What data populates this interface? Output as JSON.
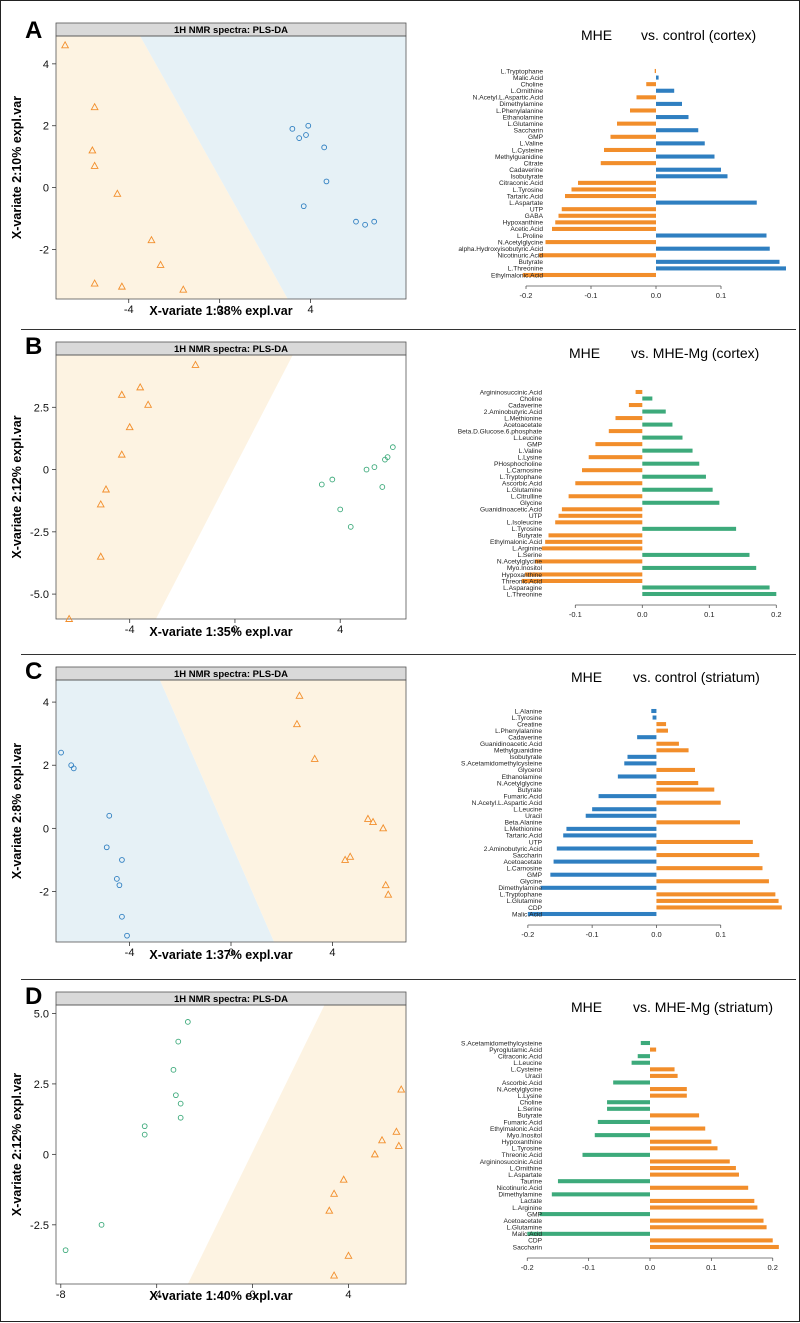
{
  "figure": {
    "palette": {
      "orange": "#f28e2b",
      "blue": "#2f7fc1",
      "green": "#3daa7b",
      "bg_orange": "#fdf3e2",
      "bg_blue": "#e6f1f6",
      "bg_green": "#eef6f3"
    },
    "panels": [
      {
        "label": "A",
        "score_plot": {
          "header": "1H NMR spectra: PLS-DA",
          "xlabel": "X-variate 1:38% expl.var",
          "ylabel": "X-variate 2:10% expl.var",
          "xticks": [
            "-4",
            "0",
            "4"
          ],
          "yticks": [
            "-2",
            "0",
            "2",
            "4"
          ]
        },
        "loading_plot": {
          "title_main": "MHE",
          "title_vs": "vs. control (cortex)",
          "xticks": [
            "-0.2",
            "-0.1",
            "0.0",
            "0.1"
          ]
        }
      },
      {
        "label": "B",
        "score_plot": {
          "header": "1H NMR spectra: PLS-DA",
          "xlabel": "X-variate 1:35% expl.var",
          "ylabel": "X-variate 2:12% expl.var",
          "xticks": [
            "-4",
            "0",
            "4"
          ],
          "yticks": [
            "-5.0",
            "-2.5",
            "0",
            "2.5"
          ]
        },
        "loading_plot": {
          "title_main": "MHE",
          "title_vs": "vs. MHE-Mg (cortex)",
          "xticks": [
            "-0.1",
            "0.0",
            "0.1",
            "0.2"
          ]
        }
      },
      {
        "label": "C",
        "score_plot": {
          "header": "1H NMR spectra: PLS-DA",
          "xlabel": "X-variate 1:37% expl.var",
          "ylabel": "X-variate 2:8% expl.var",
          "xticks": [
            "-4",
            "0",
            "4"
          ],
          "yticks": [
            "-2",
            "0",
            "2",
            "4"
          ]
        },
        "loading_plot": {
          "title_main": "MHE",
          "title_vs": "vs. control (striatum)",
          "xticks": [
            "-0.2",
            "-0.1",
            "0.0",
            "0.1"
          ]
        }
      },
      {
        "label": "D",
        "score_plot": {
          "header": "1H NMR spectra: PLS-DA",
          "xlabel": "X-variate 1:40% expl.var",
          "ylabel": "X-variate 2:12% expl.var",
          "xticks": [
            "-8",
            "-4",
            "0",
            "4"
          ],
          "yticks": [
            "-2.5",
            "0",
            "2.5",
            "5.0"
          ]
        },
        "loading_plot": {
          "title_main": "MHE",
          "title_vs": "vs. MHE-Mg (striatum)",
          "xticks": [
            "-0.2",
            "-0.1",
            "0.0",
            "0.1",
            "0.2"
          ]
        }
      }
    ]
  },
  "chart_data": [
    {
      "type": "scatter",
      "panel": "A",
      "xlabel": "X-variate 1:38% expl.var",
      "ylabel": "X-variate 2:10% expl.var",
      "xlim": [
        -7.2,
        8.2
      ],
      "ylim": [
        -3.6,
        4.9
      ],
      "region_boundary": {
        "x_top": -3.5,
        "x_bottom": 3.0,
        "left_color": "orange",
        "right_color": "blue"
      },
      "series": [
        {
          "marker": "triangle",
          "color": "orange",
          "x": [
            -6.8,
            -5.5,
            -5.6,
            -5.5,
            -4.5,
            -3.0,
            -2.6,
            -5.5,
            -4.3,
            -1.6
          ],
          "y": [
            4.6,
            2.6,
            1.2,
            0.7,
            -0.2,
            -1.7,
            -2.5,
            -3.1,
            -3.2,
            -3.3
          ]
        },
        {
          "marker": "circle",
          "color": "blue",
          "x": [
            3.2,
            3.5,
            3.9,
            3.8,
            4.6,
            4.7,
            3.7,
            6.0,
            6.4,
            6.8
          ],
          "y": [
            1.9,
            1.6,
            2.0,
            1.7,
            1.3,
            0.2,
            -0.6,
            -1.1,
            -1.2,
            -1.1
          ]
        }
      ]
    },
    {
      "type": "bar",
      "panel": "A",
      "title": "MHE vs. control (cortex)",
      "categories": [
        "L.Tryptophane",
        "Malic.Acid",
        "Choline",
        "L.Ornithine",
        "N.Acetyl.L.Aspartic.Acid",
        "Dimethylamine",
        "L.Phenylalanine",
        "Ethanolamine",
        "L.Glutamine",
        "Saccharin",
        "GMP",
        "L.Valine",
        "L.Cysteine",
        "Methylguanidine",
        "Citrate",
        "Cadaverine",
        "Isobutyrate",
        "Citraconic.Acid",
        "L.Tyrosine",
        "Tartaric.Acid",
        "L.Aspartate",
        "UTP",
        "GABA",
        "Hypoxanthine",
        "Acetic.Acid",
        "L.Proline",
        "N.Acetylglycine",
        "alpha.Hydroxyisobutyric.Acid",
        "Nicotinuric.Acid",
        "Butyrate",
        "L.Threonine",
        "Ethylmalonic.Acid"
      ],
      "values": [
        -0.002,
        0.004,
        -0.015,
        0.028,
        -0.03,
        0.04,
        -0.04,
        0.05,
        -0.06,
        0.065,
        -0.07,
        0.075,
        -0.08,
        0.09,
        -0.085,
        0.1,
        0.11,
        -0.12,
        -0.13,
        -0.14,
        0.155,
        -0.145,
        -0.15,
        -0.155,
        -0.16,
        0.17,
        -0.17,
        0.175,
        -0.18,
        0.19,
        0.2,
        -0.205
      ],
      "xticks": [
        -0.2,
        -0.1,
        0.0,
        0.1
      ],
      "xlim": [
        -0.22,
        0.2
      ],
      "colors": {
        "negative": "orange",
        "positive": "blue"
      }
    },
    {
      "type": "scatter",
      "panel": "B",
      "xlabel": "X-variate 1:35% expl.var",
      "ylabel": "X-variate 2:12% expl.var",
      "xlim": [
        -6.8,
        6.5
      ],
      "ylim": [
        -6.0,
        4.6
      ],
      "region_boundary": {
        "x_top": 2.2,
        "x_bottom": -3.0,
        "left_color": "orange",
        "right_color": "none"
      },
      "series": [
        {
          "marker": "triangle",
          "color": "orange",
          "x": [
            -1.5,
            -3.6,
            -4.3,
            -3.3,
            -4.0,
            -4.3,
            -4.9,
            -5.1,
            -5.1,
            -6.3
          ],
          "y": [
            4.2,
            3.3,
            3.0,
            2.6,
            1.7,
            0.6,
            -0.8,
            -1.4,
            -3.5,
            -6.0
          ]
        },
        {
          "marker": "circle",
          "color": "green",
          "x": [
            3.3,
            3.7,
            4.0,
            4.4,
            5.0,
            5.6,
            5.8,
            6.0,
            5.7,
            5.3
          ],
          "y": [
            -0.6,
            -0.4,
            -1.6,
            -2.3,
            0.0,
            -0.7,
            0.5,
            0.9,
            0.4,
            0.1
          ]
        }
      ]
    },
    {
      "type": "bar",
      "panel": "B",
      "title": "MHE vs. MHE-Mg (cortex)",
      "categories": [
        "Argininosuccinic.Acid",
        "Choline",
        "Cadaverine",
        "2.Aminobutyric.Acid",
        "L.Methionine",
        "Acetoacetate",
        "Beta.D.Glucose.6.phosphate",
        "L.Leucine",
        "GMP",
        "L.Valine",
        "L.Lysine",
        "PHosphocholine",
        "L.Carnosine",
        "L.Tryptophane",
        "Ascorbic.Acid",
        "L.Glutamine",
        "L.Citrulline",
        "Glycine",
        "Guanidinoacetic.Acid",
        "UTP",
        "L.Isoleucine",
        "L.Tyrosine",
        "Butyrate",
        "Ethylmalonic.Acid",
        "L.Arginine",
        "L.Serine",
        "N.Acetylglycine",
        "Myo.Inositol",
        "Hypoxanthine",
        "Threonic.Acid",
        "L.Asparagine",
        "L.Threonine"
      ],
      "values": [
        -0.01,
        0.015,
        -0.02,
        0.035,
        -0.04,
        0.045,
        -0.05,
        0.06,
        -0.07,
        0.075,
        -0.08,
        0.085,
        -0.09,
        0.095,
        -0.1,
        0.105,
        -0.11,
        0.115,
        -0.12,
        -0.125,
        -0.13,
        0.14,
        -0.14,
        -0.145,
        -0.15,
        0.16,
        -0.16,
        0.17,
        -0.175,
        -0.18,
        0.19,
        0.2
      ],
      "xticks": [
        -0.1,
        0.0,
        0.1,
        0.2
      ],
      "xlim": [
        -0.19,
        0.21
      ],
      "colors": {
        "negative": "orange",
        "positive": "green"
      }
    },
    {
      "type": "scatter",
      "panel": "C",
      "xlabel": "X-variate 1:37% expl.var",
      "ylabel": "X-variate 2:8% expl.var",
      "xlim": [
        -6.9,
        6.9
      ],
      "ylim": [
        -3.6,
        4.7
      ],
      "region_boundary": {
        "x_top": -2.8,
        "x_bottom": 1.7,
        "left_color": "blue",
        "right_color": "orange"
      },
      "series": [
        {
          "marker": "circle",
          "color": "blue",
          "x": [
            -6.7,
            -6.3,
            -6.2,
            -4.8,
            -4.9,
            -4.3,
            -4.5,
            -4.4,
            -4.3,
            -4.1
          ],
          "y": [
            2.4,
            2.0,
            1.9,
            0.4,
            -0.6,
            -1.0,
            -1.6,
            -1.8,
            -2.8,
            -3.4
          ]
        },
        {
          "marker": "triangle",
          "color": "orange",
          "x": [
            2.7,
            2.6,
            3.3,
            5.6,
            6.0,
            4.5,
            4.7,
            5.4,
            6.1,
            6.2
          ],
          "y": [
            4.2,
            3.3,
            2.2,
            0.2,
            0.0,
            -1.0,
            -0.9,
            0.3,
            -1.8,
            -2.1
          ]
        }
      ]
    },
    {
      "type": "bar",
      "panel": "C",
      "title": "MHE vs. control (striatum)",
      "categories": [
        "L.Alanine",
        "L.Tyrosine",
        "Creatine",
        "L.Phenylalanine",
        "Cadaverine",
        "Guanidinoacetic.Acid",
        "Methylguanidine",
        "Isobutyrate",
        "S.Acetamidomethylcysteine",
        "Glycerol",
        "Ethanolamine",
        "N.Acetylglycine",
        "Butyrate",
        "Fumaric.Acid",
        "N.Acetyl.L.Aspartic.Acid",
        "L.Leucine",
        "Uracil",
        "Beta.Alanine",
        "L.Methionine",
        "Tartaric.Acid",
        "UTP",
        "2.Aminobutyric.Acid",
        "Saccharin",
        "Acetoacetate",
        "L.Carnosine",
        "GMP",
        "Glycine",
        "Dimethylamine",
        "L.Tryptophane",
        "L.Glutamine",
        "CDP",
        "Malic.Acid"
      ],
      "values": [
        -0.008,
        -0.006,
        0.015,
        0.018,
        -0.03,
        0.035,
        0.05,
        -0.045,
        -0.05,
        0.06,
        -0.06,
        0.065,
        0.09,
        -0.09,
        0.1,
        -0.1,
        -0.11,
        0.13,
        -0.14,
        -0.145,
        0.15,
        -0.155,
        0.16,
        -0.16,
        0.165,
        -0.165,
        0.175,
        -0.18,
        0.185,
        0.19,
        0.195,
        -0.2
      ],
      "xticks": [
        -0.2,
        -0.1,
        0.0,
        0.1
      ],
      "xlim": [
        -0.22,
        0.2
      ],
      "colors": {
        "negative": "blue",
        "positive": "orange"
      }
    },
    {
      "type": "scatter",
      "panel": "D",
      "xlabel": "X-variate 1:40% expl.var",
      "ylabel": "X-variate 2:12% expl.var",
      "xlim": [
        -8.2,
        6.4
      ],
      "ylim": [
        -4.6,
        5.3
      ],
      "region_boundary": {
        "x_top": 3.0,
        "x_bottom": -2.7,
        "left_color": "none",
        "right_color": "orange"
      },
      "series": [
        {
          "marker": "circle",
          "color": "green",
          "x": [
            -2.7,
            -3.1,
            -3.3,
            -3.2,
            -3.0,
            -3.0,
            -4.5,
            -4.5,
            -6.3,
            -7.8
          ],
          "y": [
            4.7,
            4.0,
            3.0,
            2.1,
            1.8,
            1.3,
            1.0,
            0.7,
            -2.5,
            -3.4
          ]
        },
        {
          "marker": "triangle",
          "color": "orange",
          "x": [
            6.2,
            6.0,
            6.1,
            5.4,
            5.1,
            3.8,
            3.4,
            3.2,
            4.0,
            3.4
          ],
          "y": [
            2.3,
            0.8,
            0.3,
            0.5,
            0.0,
            -0.9,
            -1.4,
            -2.0,
            -3.6,
            -4.3
          ]
        }
      ]
    },
    {
      "type": "bar",
      "panel": "D",
      "title": "MHE vs. MHE-Mg (striatum)",
      "categories": [
        "S.Acetamidomethylcysteine",
        "Pyroglutamic.Acid",
        "Citraconic.Acid",
        "L.Leucine",
        "L.Cysteine",
        "Uracil",
        "Ascorbic.Acid",
        "N.Acetylglycine",
        "L.Lysine",
        "Choline",
        "L.Serine",
        "Butyrate",
        "Fumaric.Acid",
        "Ethylmalonic.Acid",
        "Myo.Inositol",
        "Hypoxanthine",
        "L.Tyrosine",
        "Threonic.Acid",
        "Argininosuccinic.Acid",
        "L.Ornithine",
        "L.Aspartate",
        "Taurine",
        "Nicotinuric.Acid",
        "Dimethylamine",
        "Lactate",
        "L.Arginine",
        "GMP",
        "Acetoacetate",
        "L.Glutamine",
        "Malic.Acid",
        "CDP",
        "Saccharin"
      ],
      "values": [
        -0.015,
        0.01,
        -0.02,
        -0.03,
        0.04,
        0.045,
        -0.06,
        0.06,
        0.06,
        -0.07,
        -0.07,
        0.08,
        -0.085,
        0.09,
        -0.09,
        0.1,
        0.11,
        -0.11,
        0.13,
        0.14,
        0.145,
        -0.15,
        0.16,
        -0.16,
        0.17,
        0.175,
        -0.18,
        0.185,
        0.19,
        -0.2,
        0.2,
        0.21
      ],
      "xticks": [
        -0.2,
        -0.1,
        0.0,
        0.1,
        0.2
      ],
      "xlim": [
        -0.22,
        0.22
      ],
      "colors": {
        "negative": "green",
        "positive": "orange"
      }
    }
  ]
}
